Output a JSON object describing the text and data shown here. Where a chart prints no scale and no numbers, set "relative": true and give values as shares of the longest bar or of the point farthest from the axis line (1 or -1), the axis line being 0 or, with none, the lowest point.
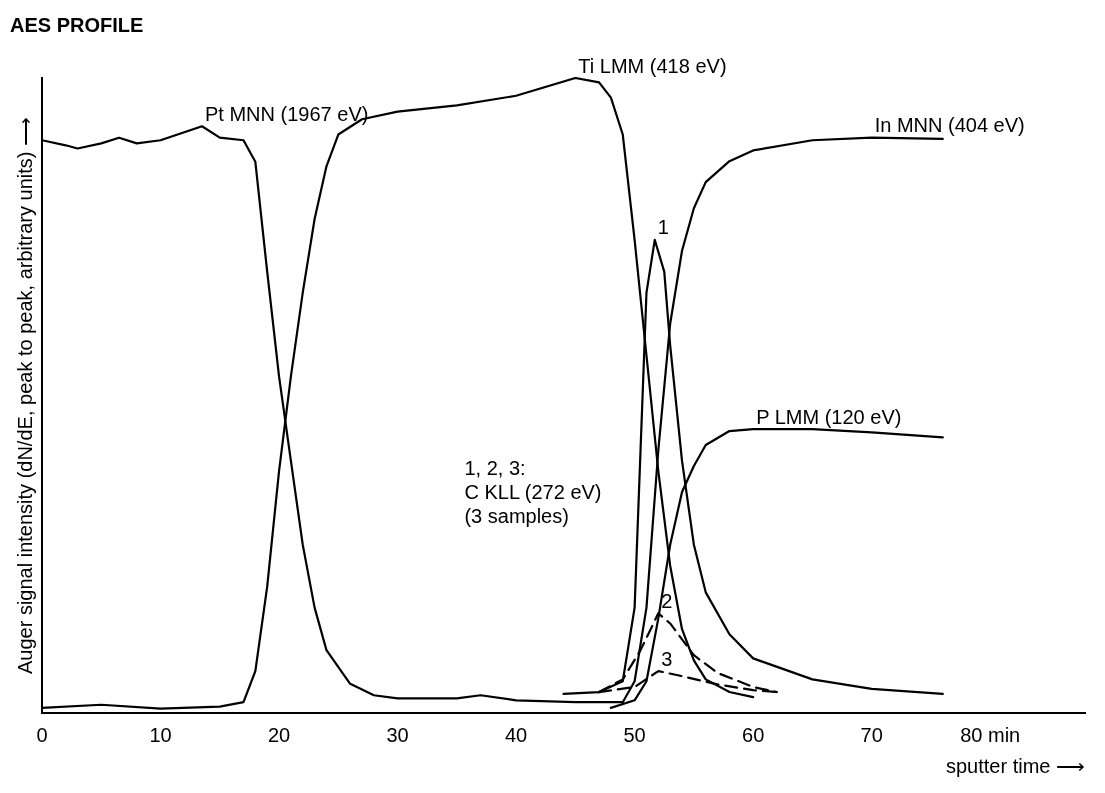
{
  "chart_data": {
    "type": "line",
    "relative": true,
    "title": "AES PROFILE",
    "xlabel": "sputter time ⟶",
    "ylabel": "Auger signal intensity (dN/dE, peak to peak, arbitrary units) ⟶",
    "xlim": [
      0,
      88
    ],
    "xticks": [
      0,
      10,
      20,
      30,
      40,
      50,
      60,
      70,
      {
        "value": 80,
        "label": "80 min"
      }
    ],
    "grid": false,
    "legend": false,
    "marker": "none",
    "annotations": [
      "1, 2, 3:\nC KLL (272 eV)\n(3 samples)"
    ],
    "series": [
      {
        "name": "Pt MNN (1967 eV)",
        "color": "#000000",
        "line_style": "solid",
        "x": [
          0,
          2,
          3,
          5,
          6.5,
          8,
          10,
          13.5,
          15,
          17,
          18,
          19,
          20,
          21,
          22,
          23,
          24,
          26,
          28,
          30,
          35,
          37,
          40,
          45,
          49
        ],
        "values": [
          0.902,
          0.894,
          0.889,
          0.897,
          0.906,
          0.897,
          0.902,
          0.924,
          0.906,
          0.902,
          0.868,
          0.695,
          0.53,
          0.397,
          0.265,
          0.166,
          0.099,
          0.046,
          0.028,
          0.023,
          0.023,
          0.028,
          0.02,
          0.017,
          0.017
        ]
      },
      {
        "name": "Ti LMM (418 eV)",
        "color": "#000000",
        "line_style": "solid",
        "x": [
          0,
          5,
          10,
          15,
          17,
          18,
          19,
          20,
          21,
          22,
          23,
          24,
          25,
          27,
          30,
          35,
          40,
          45,
          47,
          48,
          49,
          50,
          51,
          52,
          53,
          54,
          55,
          56,
          58,
          60
        ],
        "values": [
          0.008,
          0.013,
          0.007,
          0.01,
          0.017,
          0.066,
          0.199,
          0.381,
          0.53,
          0.662,
          0.778,
          0.861,
          0.911,
          0.935,
          0.947,
          0.957,
          0.972,
          1,
          0.993,
          0.969,
          0.911,
          0.745,
          0.563,
          0.381,
          0.232,
          0.132,
          0.083,
          0.053,
          0.033,
          0.025
        ]
      },
      {
        "name": "In MNN (404 eV)",
        "color": "#000000",
        "line_style": "solid",
        "x": [
          49,
          50,
          51,
          52,
          53,
          54,
          55,
          56,
          58,
          60,
          65,
          70,
          76
        ],
        "values": [
          0.017,
          0.05,
          0.166,
          0.414,
          0.613,
          0.728,
          0.795,
          0.836,
          0.869,
          0.886,
          0.902,
          0.906,
          0.904
        ]
      },
      {
        "name": "P LMM (120 eV)",
        "color": "#000000",
        "line_style": "solid",
        "x": [
          48,
          50,
          51,
          52,
          53,
          54,
          55,
          56,
          58,
          60,
          65,
          70,
          76
        ],
        "values": [
          0.008,
          0.02,
          0.05,
          0.149,
          0.265,
          0.348,
          0.389,
          0.422,
          0.444,
          0.447,
          0.447,
          0.442,
          0.434
        ]
      },
      {
        "name": "1",
        "color": "#000000",
        "line_style": "solid",
        "x": [
          44,
          47,
          49,
          50,
          50.5,
          51,
          51.7,
          52.5,
          53,
          54,
          55,
          56,
          58,
          60,
          65,
          70,
          76
        ],
        "values": [
          0.03,
          0.033,
          0.05,
          0.166,
          0.414,
          0.662,
          0.745,
          0.695,
          0.579,
          0.397,
          0.265,
          0.19,
          0.124,
          0.086,
          0.053,
          0.038,
          0.03
        ]
      },
      {
        "name": "2",
        "color": "#000000",
        "line_style": "dashed",
        "x": [
          47,
          49,
          50.5,
          52,
          53,
          55,
          57,
          60,
          62
        ],
        "values": [
          0.033,
          0.053,
          0.099,
          0.157,
          0.141,
          0.091,
          0.063,
          0.041,
          0.033
        ]
      },
      {
        "name": "3",
        "color": "#000000",
        "line_style": "dashed",
        "x": [
          47,
          50,
          52,
          54,
          57,
          60,
          62
        ],
        "values": [
          0.033,
          0.041,
          0.066,
          0.058,
          0.045,
          0.036,
          0.033
        ]
      }
    ]
  }
}
